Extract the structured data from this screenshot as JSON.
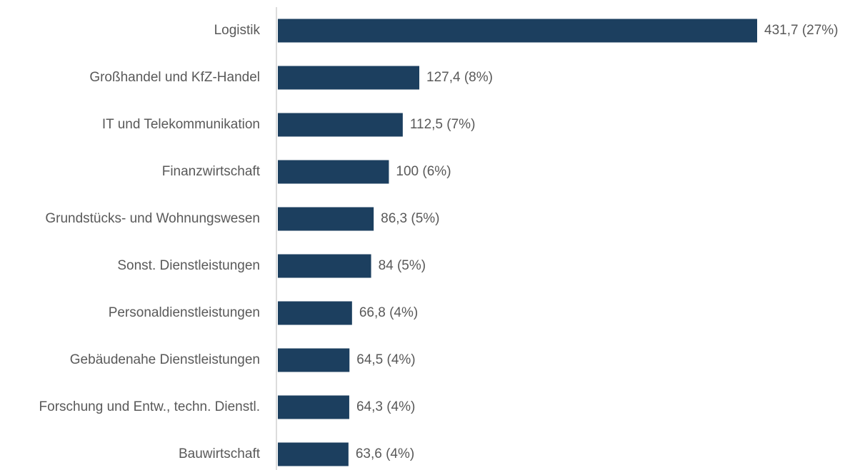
{
  "chart_data": {
    "type": "barh",
    "color": "#1c3f5f",
    "categories": [
      "Logistik",
      "Großhandel und KfZ-Handel",
      "IT und Telekommunikation",
      "Finanzwirtschaft",
      "Grundstücks- und Wohnungswesen",
      "Sonst. Dienstleistungen",
      "Personaldienstleistungen",
      "Gebäudenahe Dienstleistungen",
      "Forschung und Entw., techn. Dienstl.",
      "Bauwirtschaft"
    ],
    "values": [
      431.7,
      127.4,
      112.5,
      100,
      86.3,
      84,
      66.8,
      64.5,
      64.3,
      63.6
    ],
    "value_labels": [
      "431,7 (27%)",
      "127,4 (8%)",
      "112,5 (7%)",
      "100 (6%)",
      "86,3 (5%)",
      "84 (5%)",
      "66,8 (4%)",
      "64,5 (4%)",
      "64,3 (4%)",
      "63,6 (4%)"
    ]
  }
}
